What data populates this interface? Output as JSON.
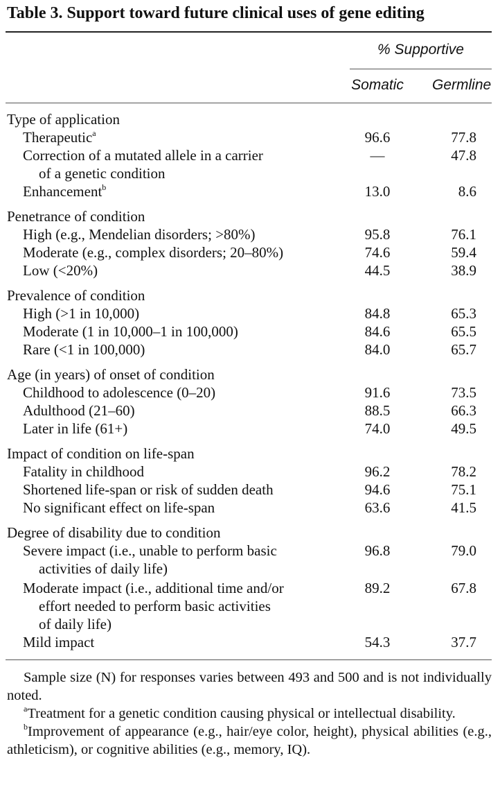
{
  "table": {
    "title": "Table 3.  Support toward future clinical uses of gene editing",
    "column_group_header": "% Supportive",
    "column_headers": [
      "Somatic",
      "Germline"
    ],
    "rows": [
      {
        "label": "Type of application",
        "somatic": "",
        "germline": ""
      },
      {
        "label": "Therapeutic",
        "sup": "a",
        "somatic": "96.6",
        "germline": "77.8"
      },
      {
        "label": "Correction of a mutated allele in a carrier",
        "somatic": "—",
        "germline": "47.8"
      },
      {
        "label": "of a genetic condition",
        "somatic": "",
        "germline": ""
      },
      {
        "label": "Enhancement",
        "sup": "b",
        "somatic": "13.0",
        "germline": "8.6"
      },
      {
        "label": "Penetrance of condition",
        "somatic": "",
        "germline": ""
      },
      {
        "label": "High (e.g., Mendelian disorders; >80%)",
        "somatic": "95.8",
        "germline": "76.1"
      },
      {
        "label": "Moderate (e.g., complex disorders; 20–80%)",
        "somatic": "74.6",
        "germline": "59.4"
      },
      {
        "label": "Low (<20%)",
        "somatic": "44.5",
        "germline": "38.9"
      },
      {
        "label": "Prevalence of condition",
        "somatic": "",
        "germline": ""
      },
      {
        "label": "High (>1 in 10,000)",
        "somatic": "84.8",
        "germline": "65.3"
      },
      {
        "label": "Moderate (1 in 10,000–1 in 100,000)",
        "somatic": "84.6",
        "germline": "65.5"
      },
      {
        "label": "Rare (<1 in 100,000)",
        "somatic": "84.0",
        "germline": "65.7"
      },
      {
        "label": "Age (in years) of onset of condition",
        "somatic": "",
        "germline": ""
      },
      {
        "label": "Childhood to adolescence (0–20)",
        "somatic": "91.6",
        "germline": "73.5"
      },
      {
        "label": "Adulthood (21–60)",
        "somatic": "88.5",
        "germline": "66.3"
      },
      {
        "label": "Later in life (61+)",
        "somatic": "74.0",
        "germline": "49.5"
      },
      {
        "label": "Impact of condition on life-span",
        "somatic": "",
        "germline": ""
      },
      {
        "label": "Fatality in childhood",
        "somatic": "96.2",
        "germline": "78.2"
      },
      {
        "label": "Shortened life-span or risk of sudden death",
        "somatic": "94.6",
        "germline": "75.1"
      },
      {
        "label": "No significant effect on life-span",
        "somatic": "63.6",
        "germline": "41.5"
      },
      {
        "label": "Degree of disability due to condition",
        "somatic": "",
        "germline": ""
      },
      {
        "label": "Severe impact (i.e., unable to perform basic",
        "somatic": "96.8",
        "germline": "79.0"
      },
      {
        "label": "activities of daily life)",
        "somatic": "",
        "germline": ""
      },
      {
        "label": "Moderate impact (i.e., additional time and/or",
        "somatic": "89.2",
        "germline": "67.8"
      },
      {
        "label": "effort needed to perform basic activities",
        "somatic": "",
        "germline": ""
      },
      {
        "label": "of daily life)",
        "somatic": "",
        "germline": ""
      },
      {
        "label": "Mild impact",
        "somatic": "54.3",
        "germline": "37.7"
      }
    ]
  },
  "notes": {
    "sample": "Sample size (N) for responses varies between 493 and 500 and is not individually noted.",
    "a_mark": "a",
    "a_text": "Treatment for a genetic condition causing physical or intellectual disability.",
    "b_mark": "b",
    "b_text": "Improvement of appearance (e.g., hair/eye color, height), physical abilities (e.g., athleticism), or cognitive abilities (e.g., memory, IQ)."
  }
}
